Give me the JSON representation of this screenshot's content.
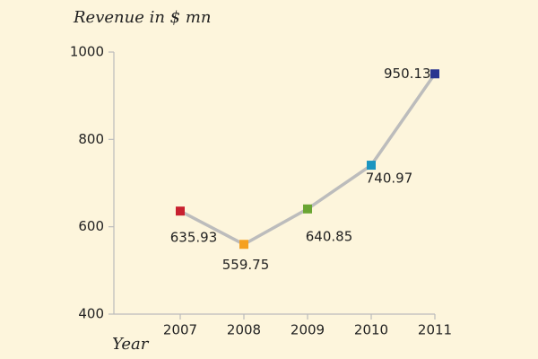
{
  "chart_data": {
    "type": "line",
    "title": "Revenue in $ mn",
    "x_label": "Year",
    "categories": [
      "2007",
      "2008",
      "2009",
      "2010",
      "2011"
    ],
    "values": [
      635.93,
      559.75,
      640.85,
      740.97,
      950.13
    ],
    "color": "#bcbcbc",
    "marker_colors": [
      "#c8202f",
      "#f5a020",
      "#6aa532",
      "#1b95c0",
      "#2a3590"
    ],
    "ylim": [
      400,
      1000
    ],
    "yticks": [
      400,
      600,
      800,
      1000
    ],
    "grid": false
  }
}
